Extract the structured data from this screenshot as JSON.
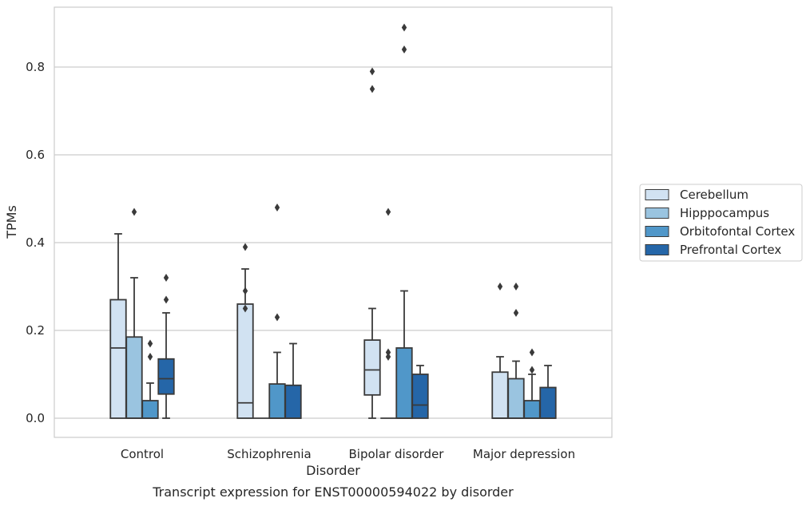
{
  "chart_data": {
    "type": "box",
    "title": "",
    "caption": "Transcript expression for ENST00000594022 by disorder",
    "xlabel": "Disorder",
    "ylabel": "TPMs",
    "ylim": [
      -0.045,
      0.94
    ],
    "yticks": [
      0.0,
      0.2,
      0.4,
      0.6,
      0.8
    ],
    "ytick_labels": [
      "0.0",
      "0.2",
      "0.4",
      "0.6",
      "0.8"
    ],
    "grid": "horizontal",
    "legend_position": "right",
    "categories": [
      "Control",
      "Schizophrenia",
      "Bipolar disorder",
      "Major depression"
    ],
    "series": [
      {
        "name": "Cerebellum",
        "color": "#d1e2f2",
        "boxes": [
          {
            "whislo": 0.0,
            "q1": 0.0,
            "med": 0.16,
            "q3": 0.27,
            "whishi": 0.42,
            "fliers": []
          },
          {
            "whislo": 0.0,
            "q1": 0.0,
            "med": 0.035,
            "q3": 0.26,
            "whishi": 0.34,
            "fliers": [
              0.39,
              0.29,
              0.25
            ]
          },
          {
            "whislo": 0.0,
            "q1": 0.053,
            "med": 0.11,
            "q3": 0.178,
            "whishi": 0.25,
            "fliers": [
              0.79,
              0.75
            ]
          },
          {
            "whislo": 0.0,
            "q1": 0.0,
            "med": 0.0,
            "q3": 0.105,
            "whishi": 0.14,
            "fliers": [
              0.3
            ]
          }
        ]
      },
      {
        "name": "Hipppocampus",
        "color": "#9ac4e0",
        "boxes": [
          {
            "whislo": 0.0,
            "q1": 0.0,
            "med": 0.0,
            "q3": 0.185,
            "whishi": 0.32,
            "fliers": [
              0.47
            ]
          },
          {
            "whislo": 0.0,
            "q1": 0.0,
            "med": 0.0,
            "q3": 0.0,
            "whishi": 0.0,
            "fliers": []
          },
          {
            "whislo": 0.0,
            "q1": 0.0,
            "med": 0.0,
            "q3": 0.0,
            "whishi": 0.0,
            "fliers": [
              0.47,
              0.15,
              0.14
            ]
          },
          {
            "whislo": 0.0,
            "q1": 0.0,
            "med": 0.0,
            "q3": 0.09,
            "whishi": 0.13,
            "fliers": [
              0.3,
              0.24
            ]
          }
        ]
      },
      {
        "name": "Orbitofontal Cortex",
        "color": "#5097c9",
        "boxes": [
          {
            "whislo": 0.0,
            "q1": 0.0,
            "med": 0.0,
            "q3": 0.04,
            "whishi": 0.08,
            "fliers": [
              0.17,
              0.14
            ]
          },
          {
            "whislo": 0.0,
            "q1": 0.0,
            "med": 0.0,
            "q3": 0.078,
            "whishi": 0.15,
            "fliers": [
              0.48,
              0.23
            ]
          },
          {
            "whislo": 0.0,
            "q1": 0.0,
            "med": 0.0,
            "q3": 0.16,
            "whishi": 0.29,
            "fliers": [
              0.89,
              0.84
            ]
          },
          {
            "whislo": 0.0,
            "q1": 0.0,
            "med": 0.0,
            "q3": 0.04,
            "whishi": 0.1,
            "fliers": [
              0.15,
              0.11
            ]
          }
        ]
      },
      {
        "name": "Prefrontal Cortex",
        "color": "#2566a8",
        "boxes": [
          {
            "whislo": 0.0,
            "q1": 0.055,
            "med": 0.09,
            "q3": 0.135,
            "whishi": 0.24,
            "fliers": [
              0.32,
              0.27
            ]
          },
          {
            "whislo": 0.0,
            "q1": 0.0,
            "med": 0.0,
            "q3": 0.075,
            "whishi": 0.17,
            "fliers": []
          },
          {
            "whislo": 0.0,
            "q1": 0.0,
            "med": 0.03,
            "q3": 0.1,
            "whishi": 0.12,
            "fliers": []
          },
          {
            "whislo": 0.0,
            "q1": 0.0,
            "med": 0.0,
            "q3": 0.07,
            "whishi": 0.12,
            "fliers": []
          }
        ]
      }
    ]
  }
}
